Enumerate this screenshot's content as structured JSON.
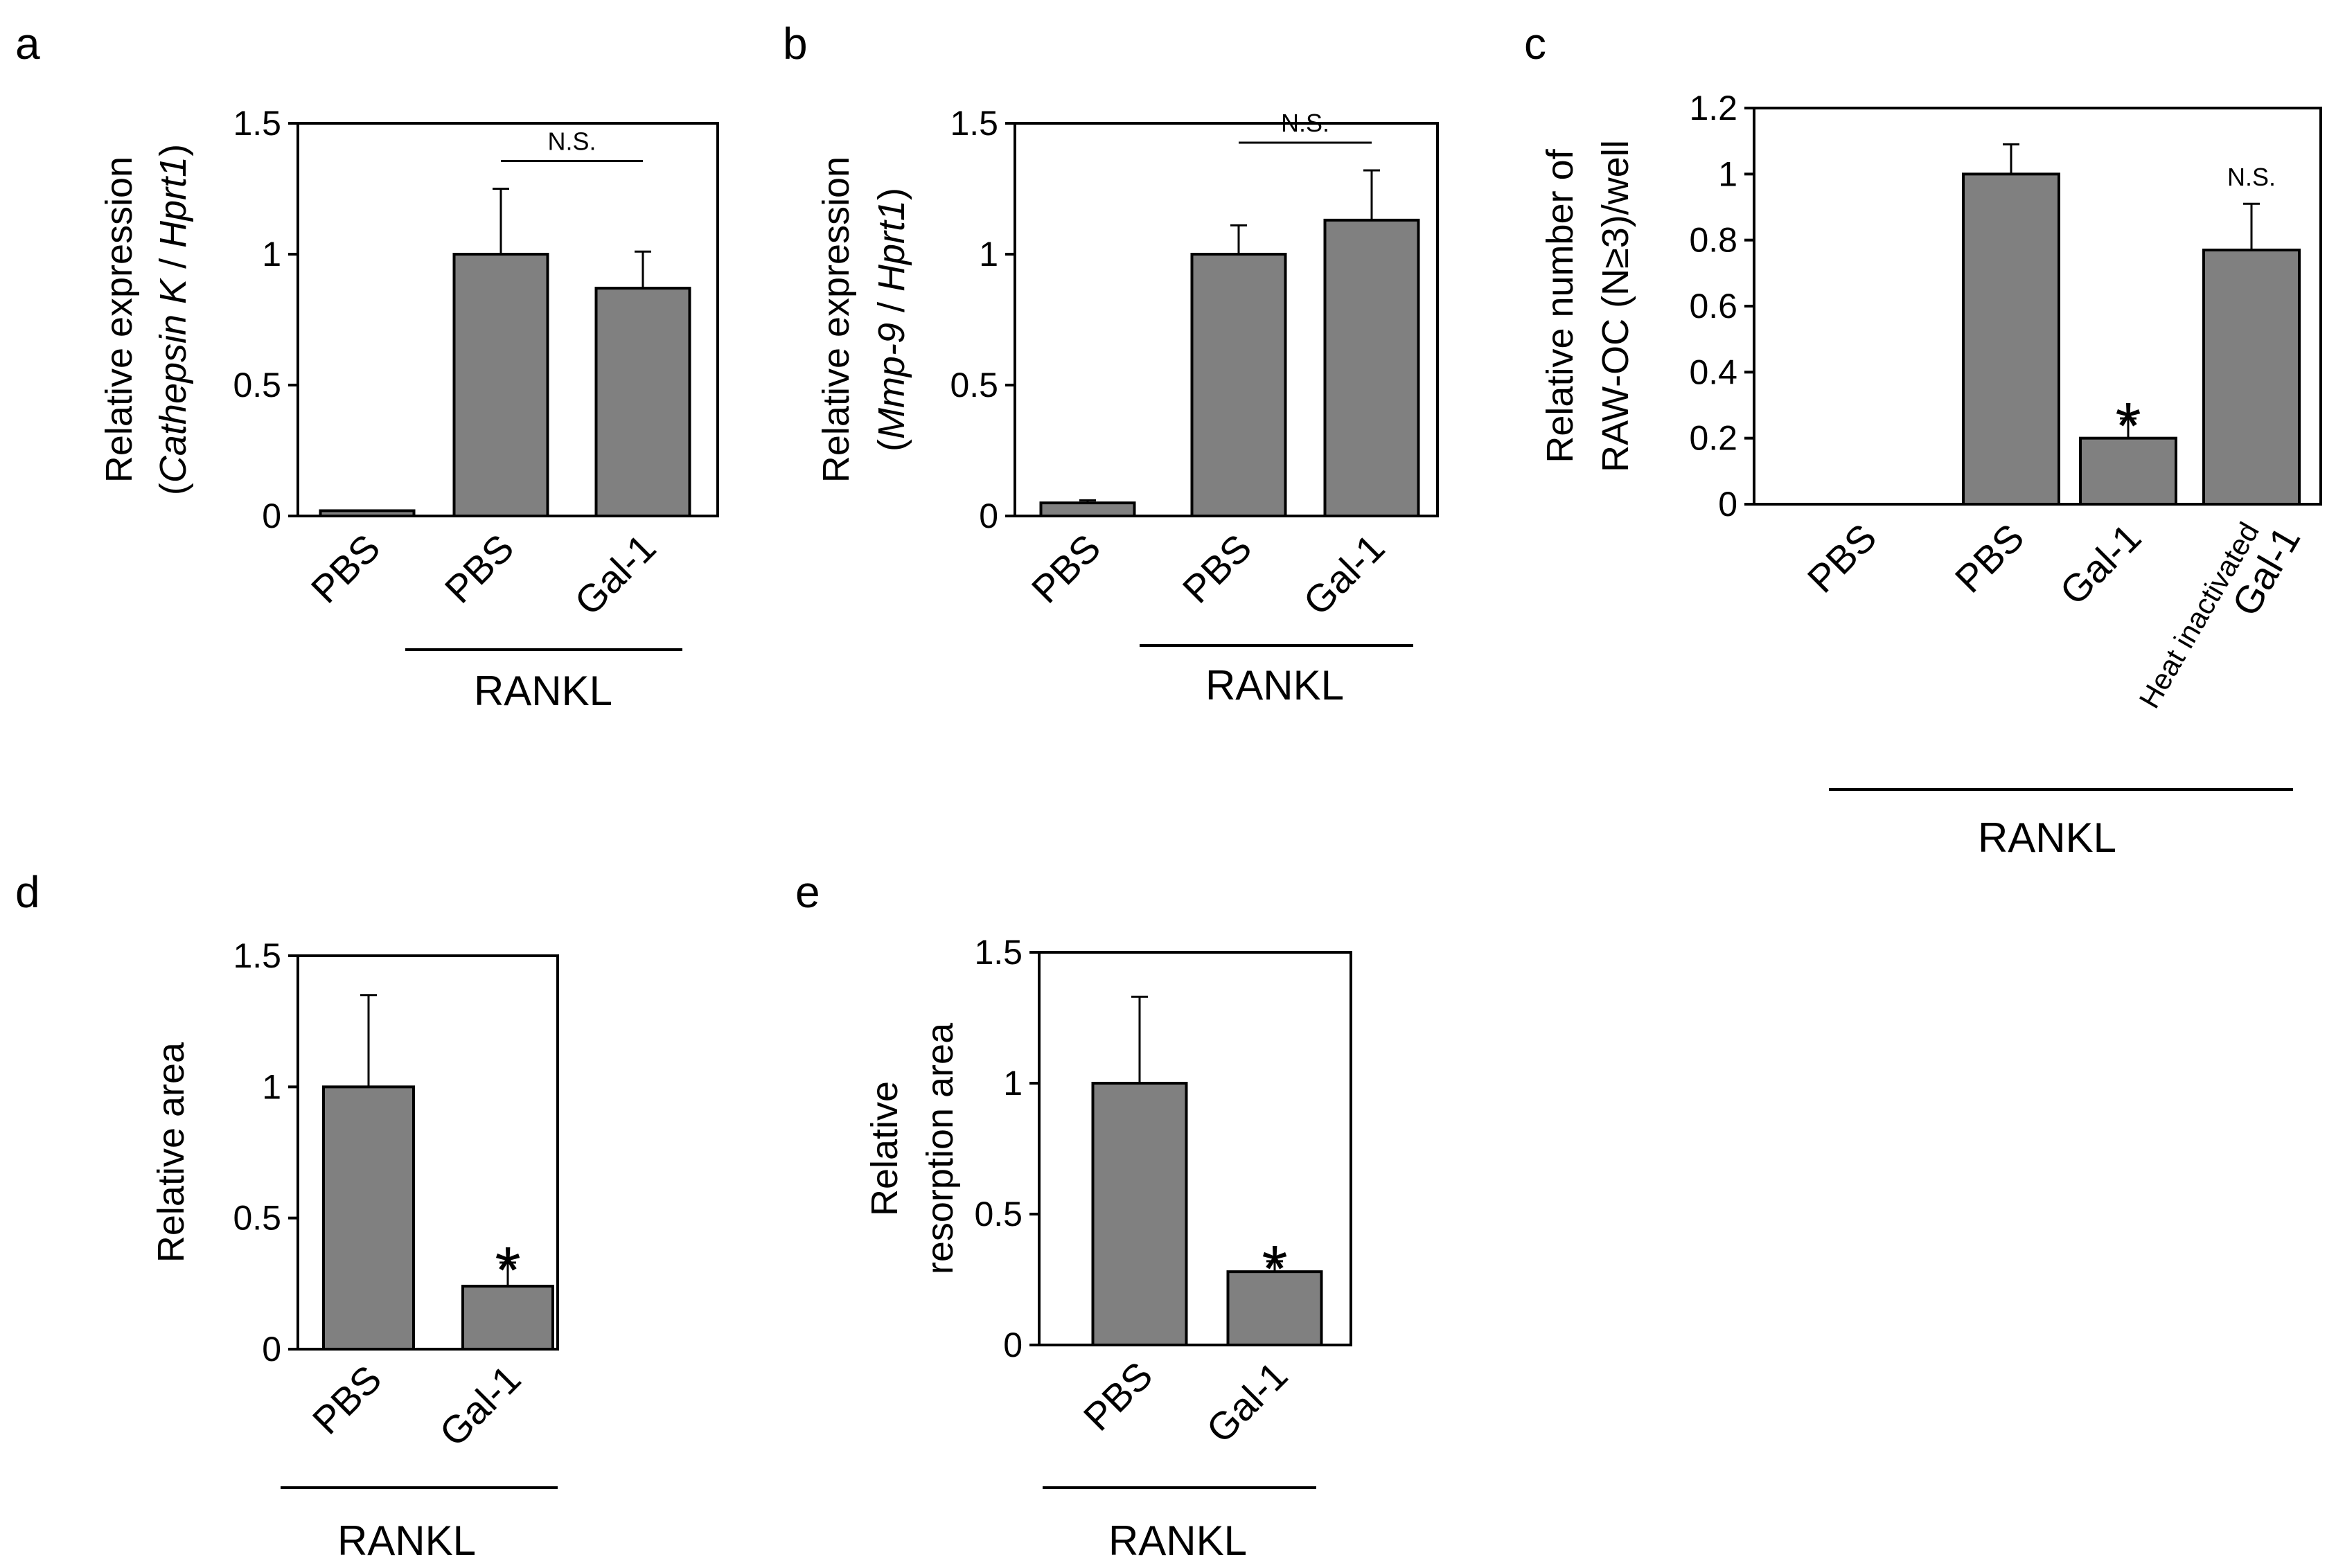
{
  "chart_data": [
    {
      "panel": "a",
      "type": "bar",
      "ylabel": "Relative expression",
      "ylabel2": [
        "(",
        "Cathepsin K",
        " / ",
        "Hprt1",
        ")"
      ],
      "ylim": [
        0,
        1.5
      ],
      "yticks": [
        0,
        0.5,
        1,
        1.5
      ],
      "ytick_labels": [
        "0",
        "0.5",
        "1",
        "1.5"
      ],
      "categories": [
        "PBS",
        "PBS",
        "Gal-1"
      ],
      "values": [
        0.02,
        1.0,
        0.87
      ],
      "errors": [
        0.0,
        0.25,
        0.14
      ],
      "group_label": "RANKL",
      "group_span": [
        1,
        2
      ],
      "annotations": [
        {
          "type": "bracket",
          "from": 1,
          "to": 2,
          "text": "N.S."
        }
      ],
      "color": "#808080"
    },
    {
      "panel": "b",
      "type": "bar",
      "ylabel": "Relative expression",
      "ylabel2": [
        "(",
        "Mmp-9",
        " / ",
        "Hprt1",
        ")"
      ],
      "ylim": [
        0,
        1.5
      ],
      "yticks": [
        0,
        0.5,
        1,
        1.5
      ],
      "ytick_labels": [
        "0",
        "0.5",
        "1",
        "1.5"
      ],
      "categories": [
        "PBS",
        "PBS",
        "Gal-1"
      ],
      "values": [
        0.05,
        1.0,
        1.13
      ],
      "errors": [
        0.01,
        0.11,
        0.19
      ],
      "group_label": "RANKL",
      "group_span": [
        1,
        2
      ],
      "annotations": [
        {
          "type": "bracket",
          "from": 1,
          "to": 2,
          "text": "N.S."
        }
      ],
      "color": "#808080"
    },
    {
      "panel": "c",
      "type": "bar",
      "ylabel": "Relative number of",
      "ylabel2": [
        "RAW-OC (N≥3)/well"
      ],
      "ylim": [
        0,
        1.2
      ],
      "yticks": [
        0,
        0.2,
        0.4,
        0.6,
        0.8,
        1,
        1.2
      ],
      "ytick_labels": [
        "0",
        "0.2",
        "0.4",
        "0.6",
        "0.8",
        "1",
        "1.2"
      ],
      "categories": [
        "PBS",
        "PBS",
        "Gal-1",
        "Gal-1"
      ],
      "category_prefix": [
        "",
        "",
        "",
        "Heat inactivated"
      ],
      "values": [
        0,
        1.0,
        0.2,
        0.77
      ],
      "errors": [
        0,
        0.09,
        0.06,
        0.14
      ],
      "group_label": "RANKL",
      "group_span": [
        1,
        3
      ],
      "annotations": [
        {
          "type": "star",
          "bar": 2,
          "text": "*"
        },
        {
          "type": "label",
          "bar": 3,
          "text": "N.S."
        }
      ],
      "color": "#808080"
    },
    {
      "panel": "d",
      "type": "bar",
      "ylabel": "Relative area",
      "ylabel2": [],
      "ylim": [
        0,
        1.5
      ],
      "yticks": [
        0,
        0.5,
        1,
        1.5
      ],
      "ytick_labels": [
        "0",
        "0.5",
        "1",
        "1.5"
      ],
      "categories": [
        "PBS",
        "Gal-1"
      ],
      "values": [
        1.0,
        0.24
      ],
      "errors": [
        0.35,
        0.09
      ],
      "group_label": "RANKL",
      "group_span": [
        0,
        1
      ],
      "annotations": [
        {
          "type": "star",
          "bar": 1,
          "text": "*"
        }
      ],
      "color": "#808080"
    },
    {
      "panel": "e",
      "type": "bar",
      "ylabel": "Relative",
      "ylabel2": [
        "resorption area"
      ],
      "ylim": [
        0,
        1.5
      ],
      "yticks": [
        0,
        0.5,
        1,
        1.5
      ],
      "ytick_labels": [
        "0",
        "0.5",
        "1",
        "1.5"
      ],
      "categories": [
        "PBS",
        "Gal-1"
      ],
      "values": [
        1.0,
        0.28
      ],
      "errors": [
        0.33,
        0.04
      ],
      "group_label": "RANKL",
      "group_span": [
        0,
        1
      ],
      "annotations": [
        {
          "type": "star",
          "bar": 1,
          "text": "*"
        }
      ],
      "color": "#808080"
    }
  ]
}
